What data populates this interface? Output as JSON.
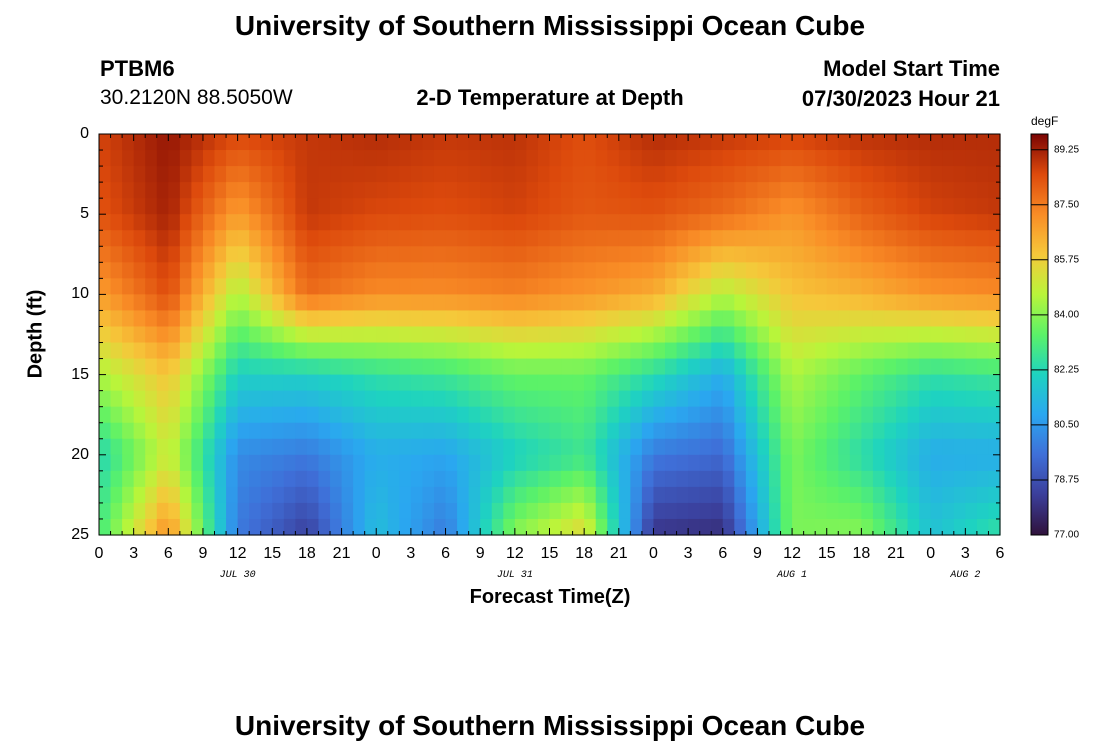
{
  "header": {
    "title": "University of Southern Mississippi Ocean Cube",
    "station_id": "PTBM6",
    "coords": "30.2120N  88.5050W",
    "subtitle": "2-D Temperature at Depth",
    "model_label": "Model Start Time",
    "model_time": "07/30/2023 Hour 21"
  },
  "footer": {
    "title": "University of Southern Mississippi Ocean Cube"
  },
  "chart_data": {
    "type": "heatmap",
    "title": "2-D Temperature at Depth",
    "xlabel": "Forecast Time(Z)",
    "ylabel": "Depth (ft)",
    "units": "degF",
    "x_hours": [
      0,
      6,
      12,
      18,
      24,
      30,
      36,
      42,
      48,
      54,
      60,
      66,
      72,
      78
    ],
    "x_tick_labels": [
      "0",
      "3",
      "6",
      "9",
      "12",
      "15",
      "18",
      "21",
      "0",
      "3",
      "6",
      "9",
      "12",
      "15",
      "18",
      "21",
      "0",
      "3",
      "6",
      "9",
      "12",
      "15",
      "18",
      "21",
      "0",
      "3",
      "6"
    ],
    "date_labels": [
      {
        "label": "JUL 30",
        "hour": 12
      },
      {
        "label": "JUL 31",
        "hour": 36
      },
      {
        "label": "AUG 1",
        "hour": 60
      },
      {
        "label": "AUG 2",
        "hour": 75
      }
    ],
    "y_depths_ft": [
      0,
      5,
      10,
      15,
      20,
      25
    ],
    "y_tick_labels": [
      "0",
      "5",
      "10",
      "15",
      "20",
      "25"
    ],
    "ylim": [
      0,
      25
    ],
    "xlim": [
      0,
      78
    ],
    "colorbar": {
      "unit": "degF",
      "min": 77.0,
      "max": 89.75,
      "ticks": [
        "89.25",
        "87.50",
        "85.75",
        "84.00",
        "82.25",
        "80.50",
        "78.75",
        "77.00"
      ],
      "tick_values": [
        89.25,
        87.5,
        85.75,
        84.0,
        82.25,
        80.5,
        78.75,
        77.0
      ]
    },
    "temperature_grid_degF": [
      [
        88.6,
        89.4,
        88.5,
        88.8,
        89.0,
        88.8,
        88.9,
        88.4,
        89.0,
        88.8,
        88.6,
        88.9,
        89.0,
        89.0
      ],
      [
        88.3,
        89.2,
        86.8,
        88.8,
        88.5,
        88.4,
        88.6,
        88.2,
        88.3,
        87.8,
        87.0,
        88.0,
        88.6,
        88.8
      ],
      [
        86.8,
        88.4,
        84.5,
        87.8,
        87.2,
        87.2,
        87.4,
        87.0,
        86.5,
        84.6,
        86.0,
        86.4,
        87.0,
        87.2
      ],
      [
        84.5,
        86.0,
        82.0,
        82.0,
        82.5,
        82.8,
        83.5,
        83.5,
        82.4,
        81.0,
        84.5,
        83.4,
        82.5,
        82.8
      ],
      [
        82.2,
        85.0,
        80.2,
        79.8,
        81.0,
        80.8,
        82.0,
        82.8,
        79.8,
        79.4,
        83.8,
        82.4,
        81.0,
        81.0
      ],
      [
        83.0,
        87.2,
        79.8,
        78.3,
        81.5,
        79.8,
        84.0,
        85.6,
        78.0,
        77.8,
        83.8,
        84.0,
        81.6,
        82.6
      ]
    ]
  }
}
